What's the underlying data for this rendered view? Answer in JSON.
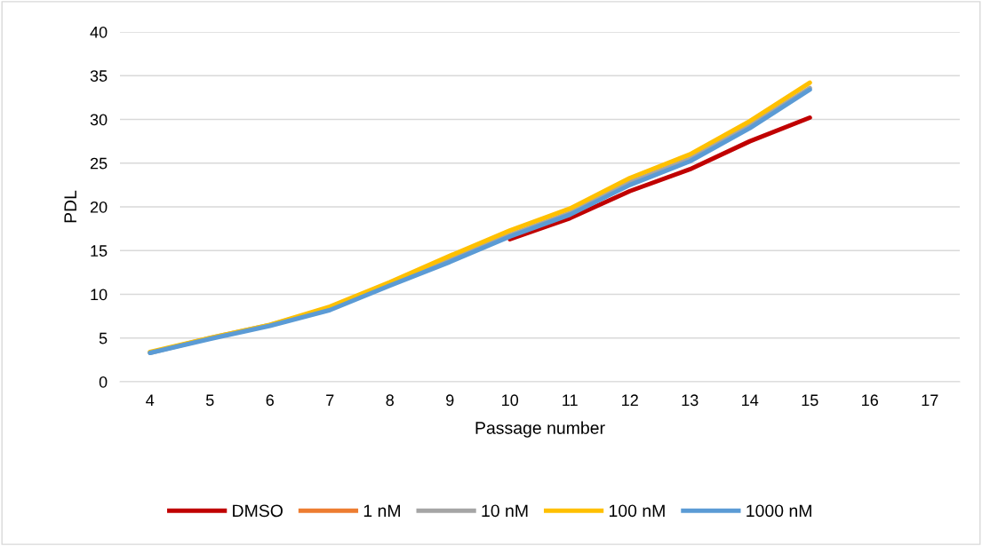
{
  "chart_data": {
    "type": "line",
    "xlabel": "Passage number",
    "ylabel": "PDL",
    "categories": [
      "4",
      "5",
      "6",
      "7",
      "8",
      "9",
      "10",
      "11",
      "12",
      "13",
      "14",
      "15",
      "16",
      "17"
    ],
    "series": [
      {
        "name": "DMSO",
        "color": "#c00000",
        "values": [
          null,
          null,
          null,
          null,
          null,
          null,
          16.3,
          18.7,
          21.8,
          24.3,
          27.5,
          30.2,
          null,
          null
        ]
      },
      {
        "name": "1 nM",
        "color": "#ed7d31",
        "values": [
          null,
          null,
          null,
          null,
          null,
          null,
          null,
          null,
          null,
          null,
          null,
          null,
          null,
          null
        ]
      },
      {
        "name": "10 nM",
        "color": "#a5a5a5",
        "values": [
          3.3,
          5.0,
          6.5,
          8.4,
          11.2,
          14.0,
          16.8,
          19.3,
          22.8,
          25.5,
          29.3,
          33.6,
          null,
          null
        ]
      },
      {
        "name": "100 nM",
        "color": "#ffc000",
        "values": [
          3.4,
          5.0,
          6.5,
          8.6,
          11.4,
          14.4,
          17.3,
          19.8,
          23.3,
          26.0,
          29.8,
          34.2,
          null,
          null
        ]
      },
      {
        "name": "1000 nM",
        "color": "#5b9bd5",
        "values": [
          3.3,
          4.9,
          6.4,
          8.2,
          11.0,
          13.7,
          16.6,
          19.1,
          22.5,
          25.2,
          29.0,
          33.4,
          null,
          null
        ]
      }
    ],
    "ylim": [
      0,
      40
    ],
    "yticks": [
      0,
      5,
      10,
      15,
      20,
      25,
      30,
      35,
      40
    ],
    "grid": "y",
    "legend": "bottom",
    "marker": "none",
    "line_style": "solid"
  }
}
